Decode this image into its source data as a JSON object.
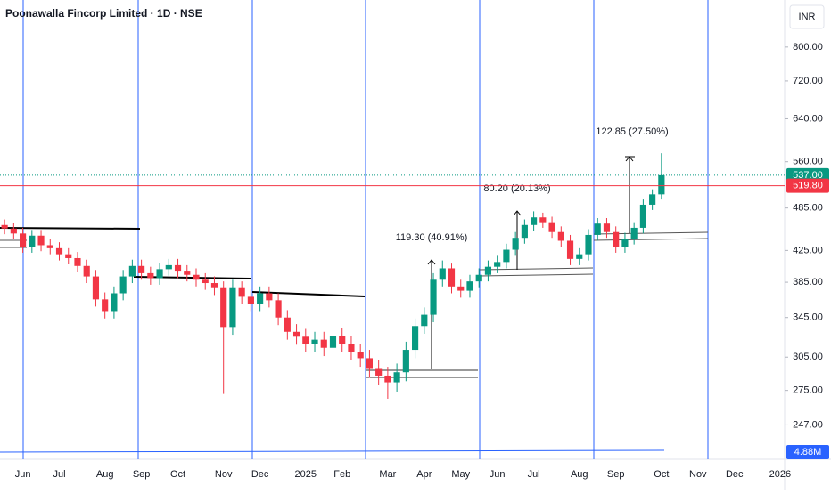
{
  "chart_data": {
    "type": "candlestick",
    "title": "Poonawalla Fincorp Limited · 1D · NSE",
    "currency": "INR",
    "log_scale": true,
    "up_color": "#089981",
    "down_color": "#f23645",
    "categories": [
      null,
      null,
      "Jun",
      null,
      null,
      null,
      "Jul",
      null,
      null,
      null,
      null,
      "Aug",
      null,
      null,
      null,
      "Sep",
      null,
      null,
      null,
      "Oct",
      null,
      null,
      null,
      null,
      "Nov",
      null,
      null,
      null,
      "Dec",
      null,
      null,
      null,
      null,
      "2025",
      null,
      null,
      null,
      "Feb",
      null,
      null,
      null,
      null,
      "Mar",
      null,
      null,
      null,
      "Apr",
      null,
      null,
      null,
      "May",
      null,
      null,
      null,
      "Jun",
      null,
      null,
      null,
      "Jul",
      null,
      null,
      null,
      null,
      "Aug",
      null,
      null,
      null,
      "Sep",
      null,
      null,
      null,
      null,
      "Oct",
      null,
      null,
      null,
      "Nov",
      null,
      null,
      null,
      "Dec",
      null,
      null,
      null,
      null,
      "2026"
    ],
    "open": [
      460,
      455,
      448,
      430,
      445,
      432,
      428,
      420,
      415,
      405,
      392,
      365,
      352,
      372,
      392,
      405,
      396,
      390,
      401,
      406,
      398,
      394,
      388,
      384,
      378,
      335,
      378,
      368,
      360,
      372,
      364,
      345,
      330,
      325,
      318,
      322,
      314,
      326,
      318,
      310,
      304,
      294,
      288,
      282,
      291,
      312,
      336,
      348,
      388,
      402,
      380,
      375,
      386,
      394,
      404,
      410,
      426,
      442,
      460,
      471,
      464,
      450,
      438,
      414,
      420,
      446,
      462,
      450,
      430,
      441,
      456,
      490,
      506,
      null,
      null,
      null,
      null,
      null,
      null,
      null,
      null,
      null,
      null,
      null,
      null,
      null
    ],
    "high": [
      468,
      463,
      456,
      453,
      453,
      440,
      436,
      428,
      423,
      413,
      400,
      373,
      380,
      400,
      413,
      413,
      404,
      409,
      414,
      414,
      406,
      402,
      396,
      392,
      386,
      388,
      386,
      376,
      380,
      380,
      372,
      353,
      338,
      333,
      330,
      330,
      334,
      334,
      326,
      318,
      312,
      302,
      296,
      299,
      320,
      344,
      356,
      396,
      412,
      408,
      388,
      394,
      402,
      412,
      418,
      434,
      450,
      468,
      480,
      478,
      472,
      458,
      446,
      428,
      454,
      470,
      470,
      458,
      449,
      464,
      498,
      514,
      575,
      null,
      null,
      null,
      null,
      null,
      null,
      null,
      null,
      null,
      null,
      null,
      null,
      null
    ],
    "low": [
      447,
      440,
      422,
      422,
      424,
      420,
      412,
      407,
      397,
      384,
      357,
      344,
      344,
      364,
      384,
      388,
      382,
      382,
      393,
      390,
      386,
      380,
      376,
      370,
      272,
      327,
      360,
      352,
      352,
      356,
      337,
      322,
      317,
      310,
      310,
      306,
      306,
      310,
      302,
      296,
      286,
      280,
      268,
      274,
      283,
      304,
      328,
      340,
      380,
      372,
      367,
      367,
      378,
      386,
      396,
      402,
      418,
      434,
      452,
      456,
      442,
      430,
      406,
      406,
      412,
      438,
      442,
      422,
      422,
      433,
      448,
      482,
      498,
      null,
      null,
      null,
      null,
      null,
      null,
      null,
      null,
      null,
      null,
      null,
      null,
      null
    ],
    "close": [
      455,
      448,
      430,
      445,
      432,
      428,
      420,
      415,
      405,
      392,
      365,
      352,
      372,
      392,
      405,
      396,
      390,
      401,
      406,
      398,
      394,
      388,
      384,
      378,
      335,
      378,
      368,
      360,
      372,
      364,
      345,
      330,
      325,
      318,
      322,
      314,
      326,
      318,
      310,
      304,
      294,
      288,
      282,
      291,
      312,
      336,
      348,
      388,
      402,
      380,
      375,
      386,
      394,
      404,
      410,
      426,
      442,
      460,
      471,
      464,
      450,
      438,
      414,
      420,
      446,
      462,
      450,
      430,
      441,
      456,
      490,
      506,
      537,
      null,
      null,
      null,
      null,
      null,
      null,
      null,
      null,
      null,
      null,
      null,
      null,
      null
    ],
    "ylim": [
      222,
      926
    ],
    "yticks": [
      {
        "value": 800,
        "label": "800.00"
      },
      {
        "value": 720,
        "label": "720.00"
      },
      {
        "value": 640,
        "label": "640.00"
      },
      {
        "value": 560,
        "label": "560.00"
      },
      {
        "value": 485,
        "label": "485.00"
      },
      {
        "value": 425,
        "label": "425.00"
      },
      {
        "value": 385,
        "label": "385.00"
      },
      {
        "value": 345,
        "label": "345.00"
      },
      {
        "value": 305,
        "label": "305.00"
      },
      {
        "value": 275,
        "label": "275.00"
      },
      {
        "value": 247,
        "label": "247.00"
      }
    ],
    "price_lines": [
      {
        "value": 537,
        "label": "537.00",
        "color": "#089981"
      },
      {
        "value": 519.8,
        "label": "519.80",
        "color": "#f23645"
      }
    ],
    "volume_label": "4.88M",
    "annotations": [
      "119.30 (40.91%)",
      "80.20 (20.13%)",
      "122.85 (27.50%)"
    ]
  }
}
